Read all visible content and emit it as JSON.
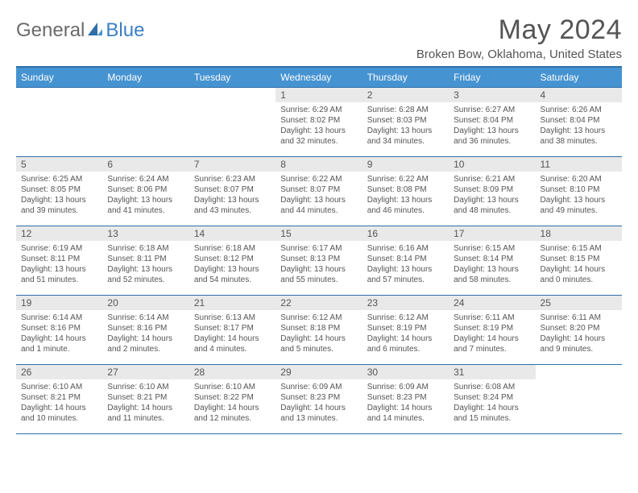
{
  "logo": {
    "text1": "General",
    "text2": "Blue"
  },
  "title": "May 2024",
  "location": "Broken Bow, Oklahoma, United States",
  "colors": {
    "header_bg": "#4693d1",
    "border": "#2f6fa8",
    "daynum_bg": "#e9e9e9",
    "text": "#555555",
    "logo_blue": "#3b7fc4"
  },
  "weekdays": [
    "Sunday",
    "Monday",
    "Tuesday",
    "Wednesday",
    "Thursday",
    "Friday",
    "Saturday"
  ],
  "weeks": [
    [
      {
        "empty": true
      },
      {
        "empty": true
      },
      {
        "empty": true
      },
      {
        "n": "1",
        "sr": "6:29 AM",
        "ss": "8:02 PM",
        "dh": "13",
        "dm": "32"
      },
      {
        "n": "2",
        "sr": "6:28 AM",
        "ss": "8:03 PM",
        "dh": "13",
        "dm": "34"
      },
      {
        "n": "3",
        "sr": "6:27 AM",
        "ss": "8:04 PM",
        "dh": "13",
        "dm": "36"
      },
      {
        "n": "4",
        "sr": "6:26 AM",
        "ss": "8:04 PM",
        "dh": "13",
        "dm": "38"
      }
    ],
    [
      {
        "n": "5",
        "sr": "6:25 AM",
        "ss": "8:05 PM",
        "dh": "13",
        "dm": "39"
      },
      {
        "n": "6",
        "sr": "6:24 AM",
        "ss": "8:06 PM",
        "dh": "13",
        "dm": "41"
      },
      {
        "n": "7",
        "sr": "6:23 AM",
        "ss": "8:07 PM",
        "dh": "13",
        "dm": "43"
      },
      {
        "n": "8",
        "sr": "6:22 AM",
        "ss": "8:07 PM",
        "dh": "13",
        "dm": "44"
      },
      {
        "n": "9",
        "sr": "6:22 AM",
        "ss": "8:08 PM",
        "dh": "13",
        "dm": "46"
      },
      {
        "n": "10",
        "sr": "6:21 AM",
        "ss": "8:09 PM",
        "dh": "13",
        "dm": "48"
      },
      {
        "n": "11",
        "sr": "6:20 AM",
        "ss": "8:10 PM",
        "dh": "13",
        "dm": "49"
      }
    ],
    [
      {
        "n": "12",
        "sr": "6:19 AM",
        "ss": "8:11 PM",
        "dh": "13",
        "dm": "51"
      },
      {
        "n": "13",
        "sr": "6:18 AM",
        "ss": "8:11 PM",
        "dh": "13",
        "dm": "52"
      },
      {
        "n": "14",
        "sr": "6:18 AM",
        "ss": "8:12 PM",
        "dh": "13",
        "dm": "54"
      },
      {
        "n": "15",
        "sr": "6:17 AM",
        "ss": "8:13 PM",
        "dh": "13",
        "dm": "55"
      },
      {
        "n": "16",
        "sr": "6:16 AM",
        "ss": "8:14 PM",
        "dh": "13",
        "dm": "57"
      },
      {
        "n": "17",
        "sr": "6:15 AM",
        "ss": "8:14 PM",
        "dh": "13",
        "dm": "58"
      },
      {
        "n": "18",
        "sr": "6:15 AM",
        "ss": "8:15 PM",
        "dh": "14",
        "dm": "0"
      }
    ],
    [
      {
        "n": "19",
        "sr": "6:14 AM",
        "ss": "8:16 PM",
        "dh": "14",
        "dm": "1",
        "onem": true
      },
      {
        "n": "20",
        "sr": "6:14 AM",
        "ss": "8:16 PM",
        "dh": "14",
        "dm": "2"
      },
      {
        "n": "21",
        "sr": "6:13 AM",
        "ss": "8:17 PM",
        "dh": "14",
        "dm": "4"
      },
      {
        "n": "22",
        "sr": "6:12 AM",
        "ss": "8:18 PM",
        "dh": "14",
        "dm": "5"
      },
      {
        "n": "23",
        "sr": "6:12 AM",
        "ss": "8:19 PM",
        "dh": "14",
        "dm": "6"
      },
      {
        "n": "24",
        "sr": "6:11 AM",
        "ss": "8:19 PM",
        "dh": "14",
        "dm": "7"
      },
      {
        "n": "25",
        "sr": "6:11 AM",
        "ss": "8:20 PM",
        "dh": "14",
        "dm": "9"
      }
    ],
    [
      {
        "n": "26",
        "sr": "6:10 AM",
        "ss": "8:21 PM",
        "dh": "14",
        "dm": "10"
      },
      {
        "n": "27",
        "sr": "6:10 AM",
        "ss": "8:21 PM",
        "dh": "14",
        "dm": "11"
      },
      {
        "n": "28",
        "sr": "6:10 AM",
        "ss": "8:22 PM",
        "dh": "14",
        "dm": "12"
      },
      {
        "n": "29",
        "sr": "6:09 AM",
        "ss": "8:23 PM",
        "dh": "14",
        "dm": "13"
      },
      {
        "n": "30",
        "sr": "6:09 AM",
        "ss": "8:23 PM",
        "dh": "14",
        "dm": "14"
      },
      {
        "n": "31",
        "sr": "6:08 AM",
        "ss": "8:24 PM",
        "dh": "14",
        "dm": "15"
      },
      {
        "empty": true
      }
    ]
  ],
  "labels": {
    "sunrise": "Sunrise:",
    "sunset": "Sunset:",
    "daylight": "Daylight:",
    "hours_and": "hours and",
    "hours": "hours",
    "minutes": "minutes.",
    "minute": "minute."
  }
}
